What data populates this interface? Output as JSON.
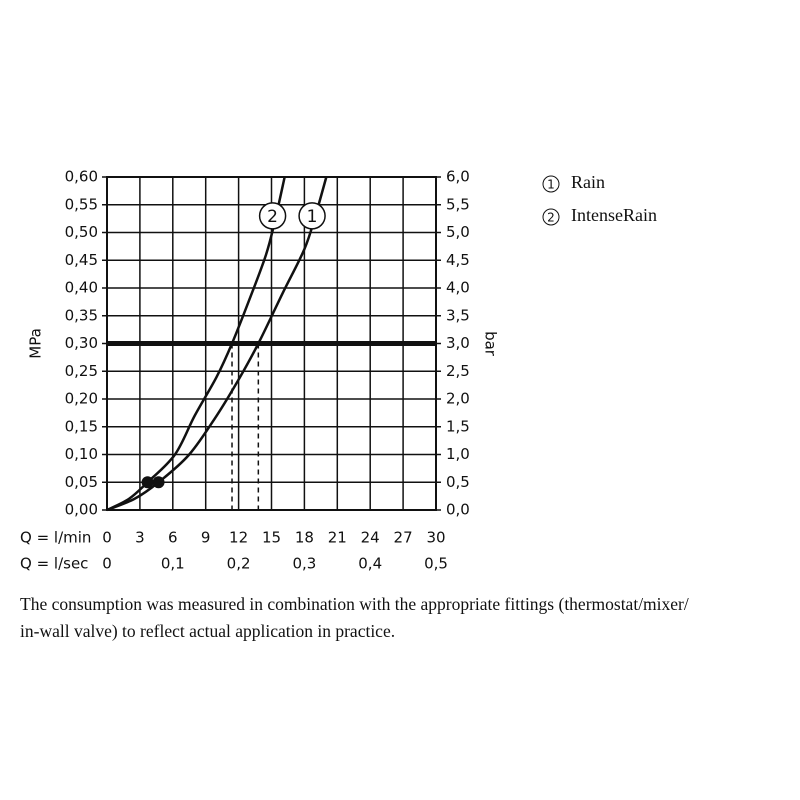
{
  "chart_data": {
    "type": "line",
    "ylabel": "MPa",
    "y2label": "bar",
    "xlabel": "Q = l/min",
    "x2label": "Q = l/sec",
    "xlim": [
      0,
      30
    ],
    "xticks": [
      0,
      3,
      6,
      9,
      12,
      15,
      18,
      21,
      24,
      27,
      30
    ],
    "x2lim": [
      0,
      0.5
    ],
    "x2ticks": [
      0,
      {
        "value": 0.1,
        "label": "0,1"
      },
      {
        "value": 0.2,
        "label": "0,2"
      },
      {
        "value": 0.3,
        "label": "0,3"
      },
      {
        "value": 0.4,
        "label": "0,4"
      },
      {
        "value": 0.5,
        "label": "0,5"
      }
    ],
    "ylim": [
      0,
      0.6
    ],
    "yticks": [
      {
        "value": 0,
        "label": "0,00"
      },
      {
        "value": 0.05,
        "label": "0,05"
      },
      {
        "value": 0.1,
        "label": "0,10"
      },
      {
        "value": 0.15,
        "label": "0,15"
      },
      {
        "value": 0.2,
        "label": "0,20"
      },
      {
        "value": 0.25,
        "label": "0,25"
      },
      {
        "value": 0.3,
        "label": "0,30"
      },
      {
        "value": 0.35,
        "label": "0,35"
      },
      {
        "value": 0.4,
        "label": "0,40"
      },
      {
        "value": 0.45,
        "label": "0,45"
      },
      {
        "value": 0.5,
        "label": "0,50"
      },
      {
        "value": 0.55,
        "label": "0,55"
      },
      {
        "value": 0.6,
        "label": "0,60"
      }
    ],
    "y2lim": [
      0,
      6
    ],
    "y2ticks": [
      {
        "value": 0,
        "label": "0,0"
      },
      {
        "value": 0.5,
        "label": "0,5"
      },
      {
        "value": 1,
        "label": "1,0"
      },
      {
        "value": 1.5,
        "label": "1,5"
      },
      {
        "value": 2,
        "label": "2,0"
      },
      {
        "value": 2.5,
        "label": "2,5"
      },
      {
        "value": 3,
        "label": "3,0"
      },
      {
        "value": 3.5,
        "label": "3,5"
      },
      {
        "value": 4,
        "label": "4,0"
      },
      {
        "value": 4.5,
        "label": "4,5"
      },
      {
        "value": 5,
        "label": "5,0"
      },
      {
        "value": 5.5,
        "label": "5,5"
      },
      {
        "value": 6,
        "label": "6,0"
      }
    ],
    "grid": true,
    "color": "#111111",
    "reference_line": 0.3,
    "series": [
      {
        "name": "Rain",
        "marker_label": "1",
        "color": "#111111",
        "x": [
          0,
          2.5,
          4.7,
          7.5,
          10,
          12,
          13.8,
          16,
          18,
          19,
          20
        ],
        "values": [
          0,
          0.02,
          0.05,
          0.1,
          0.17,
          0.235,
          0.3,
          0.39,
          0.47,
          0.53,
          0.6
        ],
        "dot": {
          "x": 4.7,
          "y": 0.05
        },
        "marker_pos": {
          "x": 18.7,
          "y": 0.53
        }
      },
      {
        "name": "IntenseRain",
        "marker_label": "2",
        "color": "#111111",
        "x": [
          0,
          2,
          3.7,
          6.2,
          8,
          10,
          11.4,
          13,
          14.5,
          15.3,
          16.2
        ],
        "values": [
          0,
          0.02,
          0.05,
          0.1,
          0.17,
          0.24,
          0.3,
          0.38,
          0.46,
          0.52,
          0.6
        ],
        "dot": {
          "x": 3.7,
          "y": 0.05
        },
        "marker_pos": {
          "x": 15.1,
          "y": 0.53
        }
      }
    ],
    "caption": [
      "The consumption was measured in combination with the appropriate fittings (thermostat/mixer/",
      "in-wall valve) to reflect actual application in practice."
    ]
  }
}
